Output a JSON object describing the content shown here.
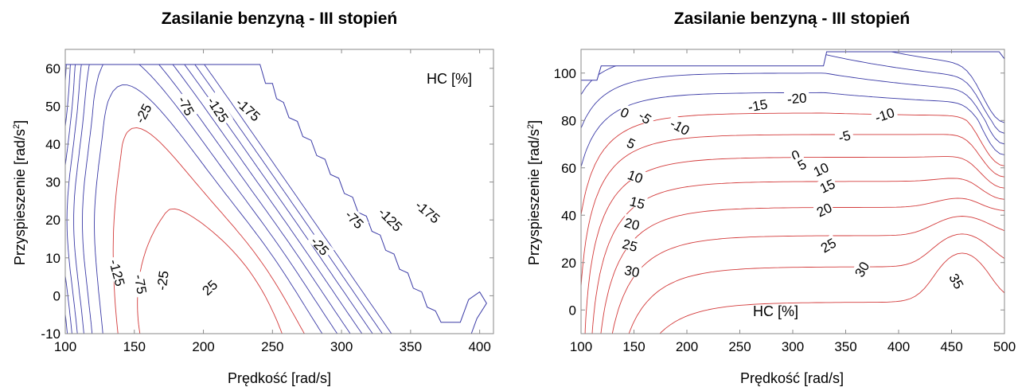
{
  "chart_data": [
    {
      "type": "contour",
      "title": "Zasilanie benzyną - III stopień",
      "xlabel": "Prędkość [rad/s]",
      "ylabel": "Przyspieszenie  [rad/s",
      "ylabel_sup": "2",
      "ylabel_close": "]",
      "annotation": "HC [%]",
      "xlim": [
        100,
        410
      ],
      "ylim": [
        -10,
        65
      ],
      "xticks": [
        100,
        150,
        200,
        250,
        300,
        350,
        400
      ],
      "yticks": [
        -10,
        0,
        10,
        20,
        30,
        40,
        50,
        60
      ],
      "grid": false,
      "colors": {
        "positive": "#d33a3a",
        "negative": "#3a3aa6",
        "frame": "#8a8a8a"
      },
      "boundary": [
        [
          100,
          61
        ],
        [
          241,
          61
        ],
        [
          245,
          56
        ],
        [
          250,
          56
        ],
        [
          253,
          52
        ],
        [
          258,
          51
        ],
        [
          262,
          47
        ],
        [
          268,
          46
        ],
        [
          272,
          42
        ],
        [
          278,
          41
        ],
        [
          282,
          37
        ],
        [
          288,
          36
        ],
        [
          292,
          32
        ],
        [
          298,
          31
        ],
        [
          302,
          27
        ],
        [
          308,
          26
        ],
        [
          312,
          22
        ],
        [
          318,
          21
        ],
        [
          322,
          17
        ],
        [
          328,
          16
        ],
        [
          332,
          12
        ],
        [
          338,
          11
        ],
        [
          342,
          7
        ],
        [
          348,
          6
        ],
        [
          352,
          2
        ],
        [
          358,
          1
        ],
        [
          362,
          -3
        ],
        [
          368,
          -4
        ],
        [
          372,
          -7
        ],
        [
          386,
          -7
        ],
        [
          392,
          -1
        ],
        [
          400,
          1
        ],
        [
          405,
          -2
        ],
        [
          398,
          -6
        ],
        [
          394,
          -10
        ]
      ],
      "contour_levels": [
        -175,
        -150,
        -125,
        -100,
        -75,
        -50,
        -25,
        0,
        25
      ],
      "contour_labels": [
        {
          "text": "-25",
          "x": 157,
          "y": 48,
          "angle": -62
        },
        {
          "text": "-75",
          "x": 187,
          "y": 50,
          "angle": 62
        },
        {
          "text": "-125",
          "x": 210,
          "y": 49,
          "angle": 57
        },
        {
          "text": "-175",
          "x": 232,
          "y": 49,
          "angle": 42
        },
        {
          "text": "-125",
          "x": 137,
          "y": 6,
          "angle": 75
        },
        {
          "text": "-75",
          "x": 154,
          "y": 3,
          "angle": 80
        },
        {
          "text": "-25",
          "x": 171,
          "y": 4,
          "angle": -82
        },
        {
          "text": "25",
          "x": 205,
          "y": 2,
          "angle": -42
        },
        {
          "text": "-25",
          "x": 284,
          "y": 13,
          "angle": 48
        },
        {
          "text": "-75",
          "x": 309,
          "y": 20,
          "angle": 45
        },
        {
          "text": "-125",
          "x": 335,
          "y": 20,
          "angle": 45
        },
        {
          "text": "-175",
          "x": 362,
          "y": 22,
          "angle": 40
        }
      ]
    },
    {
      "type": "contour",
      "title": "Zasilanie benzyną - III stopień",
      "xlabel": "Prędkość [rad/s]",
      "ylabel": "Przyspieszenie  [rad/s",
      "ylabel_sup": "2",
      "ylabel_close": "]",
      "annotation": "HC [%]",
      "xlim": [
        100,
        500
      ],
      "ylim": [
        -10,
        110
      ],
      "xticks": [
        100,
        150,
        200,
        250,
        300,
        350,
        400,
        450,
        500
      ],
      "yticks": [
        0,
        20,
        40,
        60,
        80,
        100
      ],
      "grid": false,
      "colors": {
        "positive": "#d33a3a",
        "negative": "#3a3aa6",
        "frame": "#8a8a8a"
      },
      "boundary": [
        [
          100,
          97
        ],
        [
          115,
          97
        ],
        [
          119,
          103
        ],
        [
          329,
          103
        ],
        [
          332,
          109
        ],
        [
          495,
          109
        ],
        [
          500,
          106
        ]
      ],
      "contour_levels": [
        -20,
        -15,
        -10,
        -5,
        0,
        5,
        10,
        15,
        20,
        25,
        30,
        35
      ],
      "contour_labels": [
        {
          "text": "0",
          "x": 141,
          "y": 83,
          "angle": 25
        },
        {
          "text": "-5",
          "x": 160,
          "y": 81,
          "angle": 35
        },
        {
          "text": "-10",
          "x": 193,
          "y": 77,
          "angle": 28
        },
        {
          "text": "-15",
          "x": 267,
          "y": 86,
          "angle": -10
        },
        {
          "text": "-20",
          "x": 304,
          "y": 89,
          "angle": -5
        },
        {
          "text": "-10",
          "x": 387,
          "y": 82,
          "angle": -18
        },
        {
          "text": "-5",
          "x": 349,
          "y": 73,
          "angle": -15
        },
        {
          "text": "5",
          "x": 147,
          "y": 70,
          "angle": 25
        },
        {
          "text": "0",
          "x": 303,
          "y": 65,
          "angle": -22
        },
        {
          "text": "5",
          "x": 309,
          "y": 61,
          "angle": -28
        },
        {
          "text": "10",
          "x": 151,
          "y": 56,
          "angle": 20
        },
        {
          "text": "10",
          "x": 327,
          "y": 59,
          "angle": -25
        },
        {
          "text": "15",
          "x": 153,
          "y": 45,
          "angle": 15
        },
        {
          "text": "15",
          "x": 333,
          "y": 52,
          "angle": -25
        },
        {
          "text": "20",
          "x": 148,
          "y": 36,
          "angle": 14
        },
        {
          "text": "20",
          "x": 330,
          "y": 42,
          "angle": -25
        },
        {
          "text": "25",
          "x": 146,
          "y": 27,
          "angle": 15
        },
        {
          "text": "25",
          "x": 334,
          "y": 27,
          "angle": -30
        },
        {
          "text": "30",
          "x": 148,
          "y": 16,
          "angle": 12
        },
        {
          "text": "30",
          "x": 366,
          "y": 17,
          "angle": -60
        },
        {
          "text": "35",
          "x": 454,
          "y": 12,
          "angle": 60
        }
      ]
    }
  ]
}
